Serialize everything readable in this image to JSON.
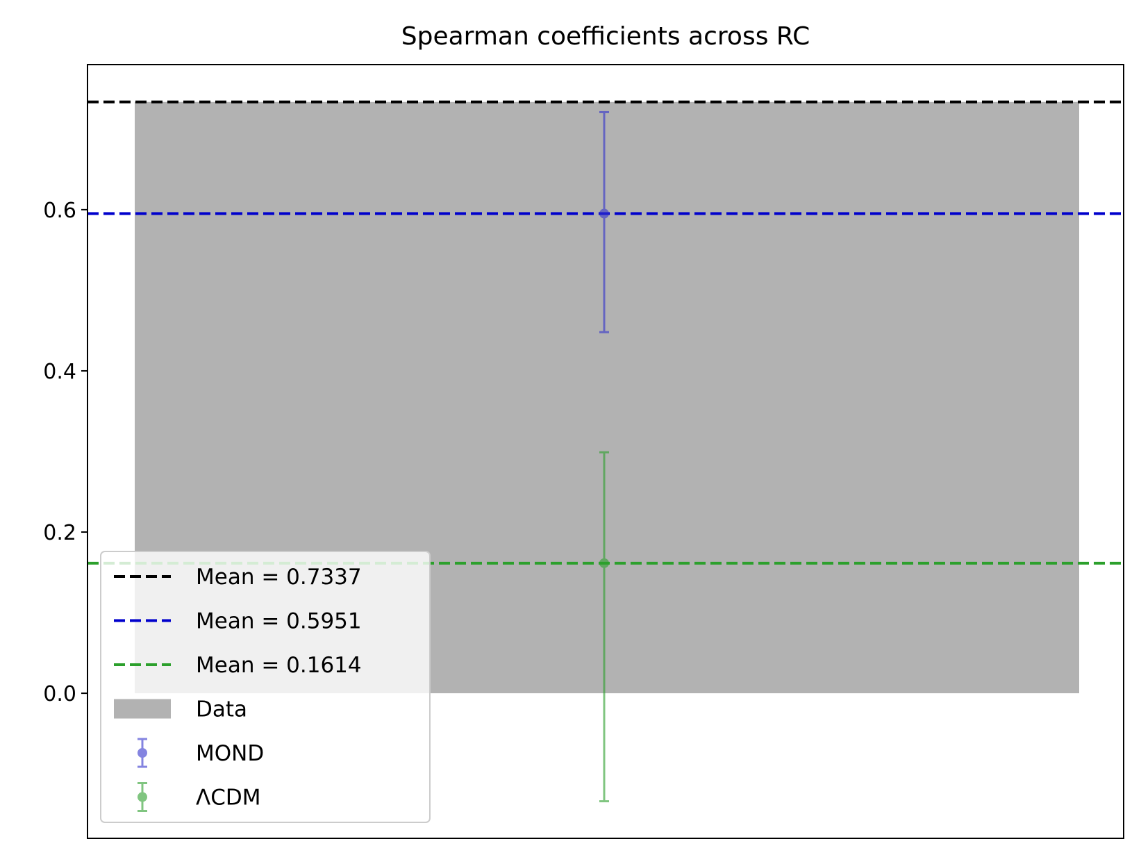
{
  "chart_data": {
    "type": "bar",
    "title": "Spearman coefficients across RC",
    "xlabel": "",
    "ylabel": "",
    "ylim": [
      -0.18,
      0.78
    ],
    "yticks": [
      0.0,
      0.2,
      0.4,
      0.6
    ],
    "ytick_labels": [
      "0.0",
      "0.2",
      "0.4",
      "0.6"
    ],
    "grid": false,
    "legend_position": "lower-left",
    "bar": {
      "name": "Data",
      "value": 0.7337,
      "color": "#b2b2b2"
    },
    "reference_lines": [
      {
        "label": "Mean = 0.7337",
        "value": 0.7337,
        "color": "#000000",
        "style": "dashed"
      },
      {
        "label": "Mean = 0.5951",
        "value": 0.5951,
        "color": "#0000cc",
        "style": "dashed"
      },
      {
        "label": "Mean = 0.1614",
        "value": 0.1614,
        "color": "#2ca02c",
        "style": "dashed"
      }
    ],
    "errorbars": [
      {
        "name": "MOND",
        "value": 0.5951,
        "lower": 0.448,
        "upper": 0.721,
        "color": "#3333cc"
      },
      {
        "name": "ΛCDM",
        "value": 0.1614,
        "lower": -0.134,
        "upper": 0.299,
        "color": "#2ca02c"
      }
    ]
  }
}
